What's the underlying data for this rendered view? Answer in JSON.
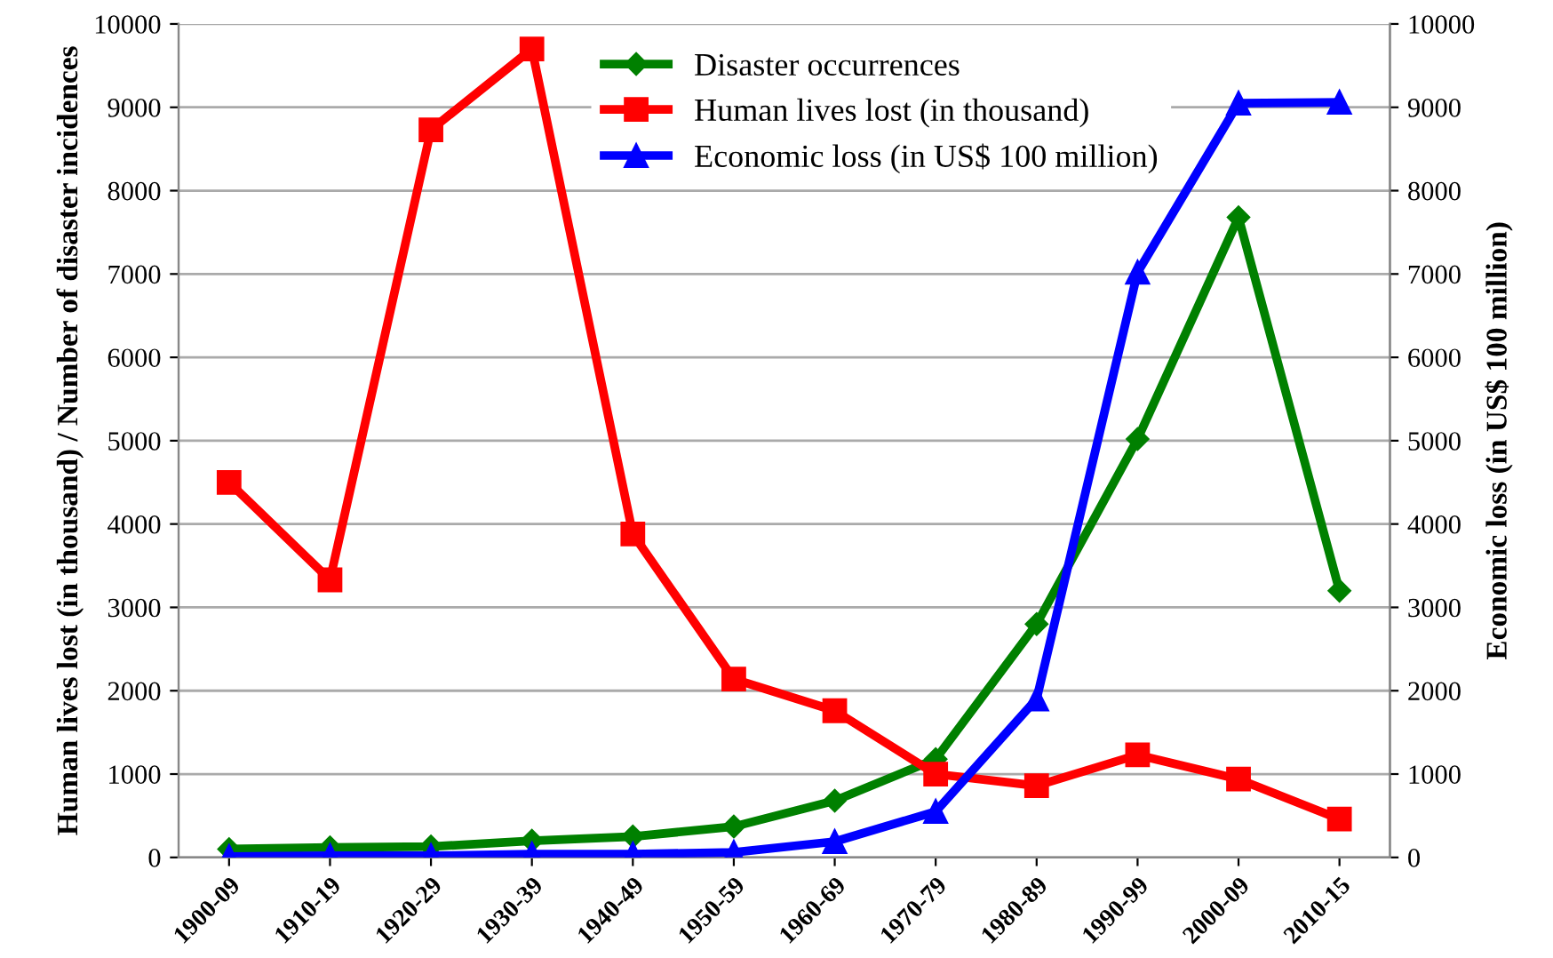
{
  "chart_data": {
    "type": "line",
    "ylabel": "Human lives lost (in thousand) / Number of disaster incidences",
    "y2label": "Economic loss (in US$ 100 million)",
    "categories": [
      "1900-09",
      "1910-19",
      "1920-29",
      "1930-39",
      "1940-49",
      "1950-59",
      "1960-69",
      "1970-79",
      "1980-89",
      "1990-99",
      "2000-09",
      "2010-15"
    ],
    "series": [
      {
        "name": "Disaster occurrences",
        "color": "#008000",
        "marker": "diamond",
        "values": [
          100,
          120,
          130,
          200,
          250,
          370,
          680,
          1180,
          2800,
          5020,
          7680,
          3200
        ]
      },
      {
        "name": "Human lives lost (in thousand)",
        "color": "#ff0000",
        "marker": "square",
        "values": [
          4500,
          3330,
          8730,
          9700,
          3880,
          2140,
          1760,
          1000,
          860,
          1230,
          940,
          460
        ]
      },
      {
        "name": "Economic loss (in US$ 100 million)",
        "color": "#0000ff",
        "marker": "triangle",
        "axis": "y2",
        "values": [
          10,
          20,
          20,
          40,
          40,
          60,
          190,
          550,
          1900,
          7020,
          9050,
          9060
        ]
      }
    ],
    "ylim": [
      0,
      10000
    ],
    "yticks": [
      0,
      1000,
      2000,
      3000,
      4000,
      5000,
      6000,
      7000,
      8000,
      9000,
      10000
    ],
    "y2lim": [
      0,
      10000
    ],
    "y2ticks": [
      0,
      1000,
      2000,
      3000,
      4000,
      5000,
      6000,
      7000,
      8000,
      9000,
      10000
    ],
    "grid": "y",
    "legend": "top",
    "line_style": "solid"
  }
}
